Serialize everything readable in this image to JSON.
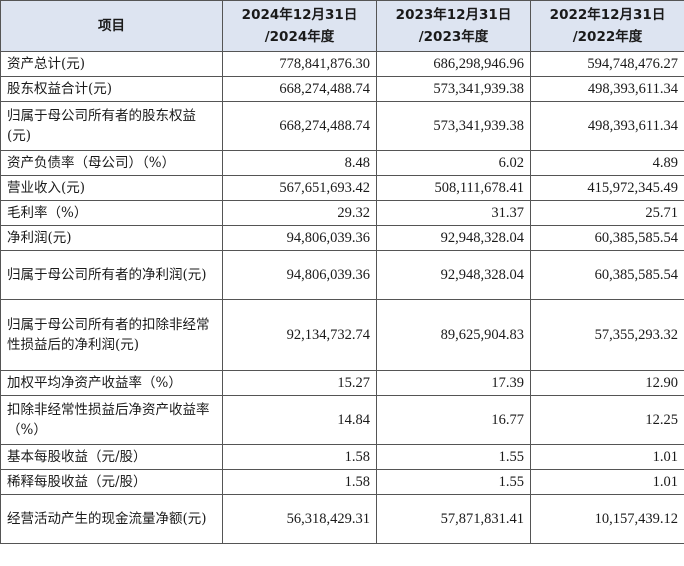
{
  "header": {
    "item": "项目",
    "cols": [
      "2024年12月31日\n/2024年度",
      "2023年12月31日\n/2023年度",
      "2022年12月31日\n/2022年度"
    ]
  },
  "rows": [
    {
      "label": "资产总计(元)",
      "values": [
        "778,841,876.30",
        "686,298,946.96",
        "594,748,476.27"
      ]
    },
    {
      "label": "股东权益合计(元)",
      "values": [
        "668,274,488.74",
        "573,341,939.38",
        "498,393,611.34"
      ]
    },
    {
      "label": "归属于母公司所有者的股东权益(元)",
      "values": [
        "668,274,488.74",
        "573,341,939.38",
        "498,393,611.34"
      ]
    },
    {
      "label": "资产负债率（母公司）（%）",
      "values": [
        "8.48",
        "6.02",
        "4.89"
      ]
    },
    {
      "label": "营业收入(元)",
      "values": [
        "567,651,693.42",
        "508,111,678.41",
        "415,972,345.49"
      ]
    },
    {
      "label": "毛利率（%）",
      "values": [
        "29.32",
        "31.37",
        "25.71"
      ]
    },
    {
      "label": "净利润(元)",
      "values": [
        "94,806,039.36",
        "92,948,328.04",
        "60,385,585.54"
      ]
    },
    {
      "label": "归属于母公司所有者的净利润(元)",
      "values": [
        "94,806,039.36",
        "92,948,328.04",
        "60,385,585.54"
      ]
    },
    {
      "label": "归属于母公司所有者的扣除非经常性损益后的净利润(元)",
      "values": [
        "92,134,732.74",
        "89,625,904.83",
        "57,355,293.32"
      ]
    },
    {
      "label": "加权平均净资产收益率（%）",
      "values": [
        "15.27",
        "17.39",
        "12.90"
      ]
    },
    {
      "label": "扣除非经常性损益后净资产收益率（%）",
      "values": [
        "14.84",
        "16.77",
        "12.25"
      ]
    },
    {
      "label": "基本每股收益（元/股）",
      "values": [
        "1.58",
        "1.55",
        "1.01"
      ]
    },
    {
      "label": "稀释每股收益（元/股）",
      "values": [
        "1.58",
        "1.55",
        "1.01"
      ]
    },
    {
      "label": "经营活动产生的现金流量净额(元)",
      "values": [
        "56,318,429.31",
        "57,871,831.41",
        "10,157,439.12"
      ]
    }
  ]
}
